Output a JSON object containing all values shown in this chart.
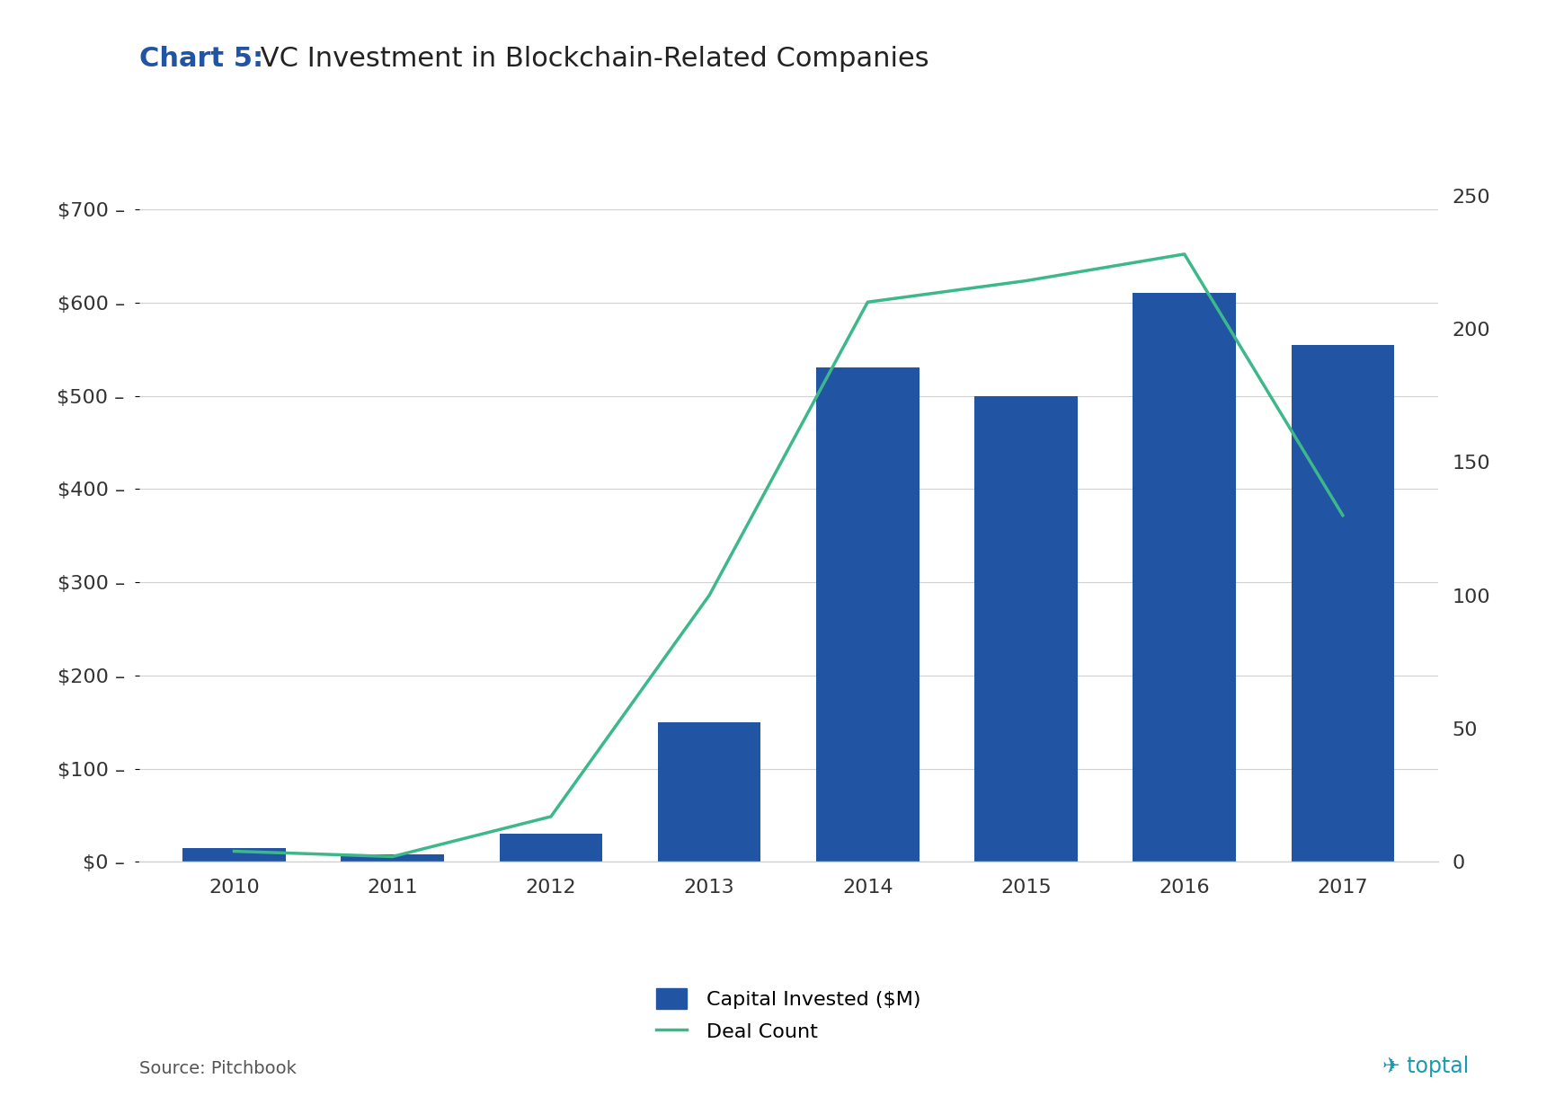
{
  "title_bold": "Chart 5:",
  "title_normal": " VC Investment in Blockchain-Related Companies",
  "years": [
    2010,
    2011,
    2012,
    2013,
    2014,
    2015,
    2016,
    2017
  ],
  "capital_invested": [
    15,
    8,
    30,
    150,
    530,
    500,
    610,
    555
  ],
  "deal_count": [
    4,
    2,
    17,
    100,
    210,
    218,
    228,
    130
  ],
  "bar_color": "#2155A3",
  "line_color": "#3CB88A",
  "left_ylim": [
    0,
    735
  ],
  "right_ylim": [
    0,
    257
  ],
  "left_yticks": [
    0,
    100,
    200,
    300,
    400,
    500,
    600,
    700
  ],
  "left_yticklabels": [
    "$0 –",
    "$100 –",
    "$200 –",
    "$300 –",
    "$400 –",
    "$500 –",
    "$600 –",
    "$700 –"
  ],
  "right_yticks": [
    0,
    50,
    100,
    150,
    200,
    250
  ],
  "right_yticklabels": [
    "0",
    "50",
    "100",
    "150",
    "200",
    "250"
  ],
  "legend_capital_label": "Capital Invested ($M)",
  "legend_deal_label": "Deal Count",
  "source_text": "Source: Pitchbook",
  "background_color": "#ffffff",
  "grid_color": "#d0d0d0",
  "bar_width": 0.65,
  "line_width": 2.5,
  "title_fontsize": 22,
  "tick_fontsize": 16,
  "legend_fontsize": 16,
  "source_fontsize": 14,
  "title_color_bold": "#2155A3",
  "title_color_normal": "#222222",
  "tick_color": "#333333"
}
